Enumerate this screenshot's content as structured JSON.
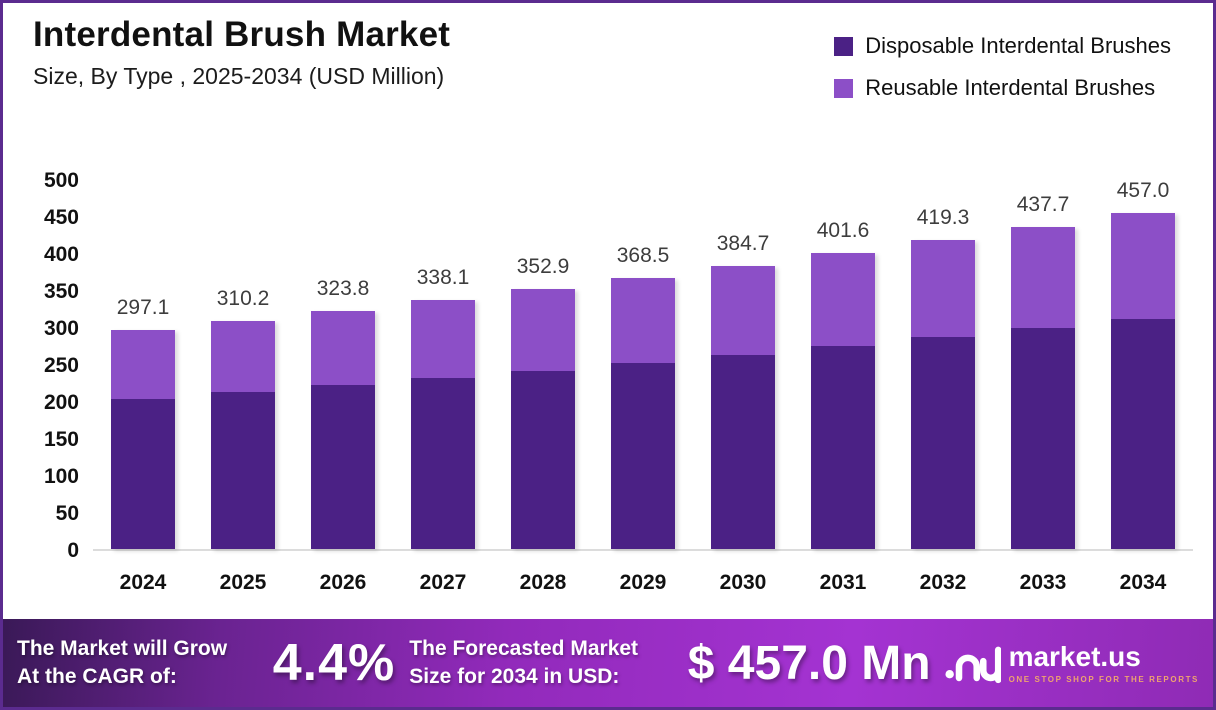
{
  "header": {
    "title": "Interdental Brush Market",
    "subtitle": "Size, By Type , 2025-2034 (USD Million)"
  },
  "chart_data": {
    "type": "bar",
    "stacked": true,
    "title": "Interdental Brush Market",
    "subtitle": "Size, By Type , 2025-2034 (USD Million)",
    "categories": [
      "2024",
      "2025",
      "2026",
      "2027",
      "2028",
      "2029",
      "2030",
      "2031",
      "2032",
      "2033",
      "2034"
    ],
    "series": [
      {
        "name": "Disposable Interdental Brushes",
        "color": "#4B2185",
        "values": [
          204.3,
          213.2,
          222.4,
          232.1,
          242.2,
          252.8,
          263.9,
          275.4,
          287.4,
          299.9,
          313.0
        ]
      },
      {
        "name": "Reusable Interdental Brushes",
        "color": "#8C4FC7",
        "values": [
          92.8,
          97.0,
          101.4,
          106.0,
          110.7,
          115.7,
          120.8,
          126.2,
          131.9,
          137.8,
          144.0
        ]
      }
    ],
    "totals": [
      "297.1",
      "310.2",
      "323.8",
      "338.1",
      "352.9",
      "368.5",
      "384.7",
      "401.6",
      "419.3",
      "437.7",
      "457.0"
    ],
    "ylim": [
      0,
      500
    ],
    "ytick_step": 50,
    "ytick_labels": [
      "500",
      "450",
      "400",
      "350",
      "300",
      "250",
      "200",
      "150",
      "100",
      "50",
      "0"
    ],
    "grid": false,
    "legend_position": "top-right"
  },
  "legend": {
    "items": [
      {
        "label": "Disposable Interdental Brushes",
        "color": "#4B2185"
      },
      {
        "label": "Reusable Interdental Brushes",
        "color": "#8C4FC7"
      }
    ]
  },
  "banner": {
    "left_line1": "The Market will Grow",
    "left_line2": "At the CAGR of:",
    "cagr": "4.4%",
    "mid_line1": "The Forecasted Market",
    "mid_line2": "Size for 2034 in USD:",
    "value": "$ 457.0 Mn",
    "brand_name": "market.us",
    "brand_tagline": "ONE STOP SHOP FOR THE REPORTS"
  },
  "colors": {
    "frame_border": "#5B2B8F",
    "disposable": "#4B2185",
    "reusable": "#8C4FC7",
    "value_label": "#3d3d3d",
    "axis_line": "#dcdcdc",
    "banner_gradient_start": "#3A1957",
    "banner_gradient_end": "#A433D2",
    "tagline": "#EFA36F"
  }
}
